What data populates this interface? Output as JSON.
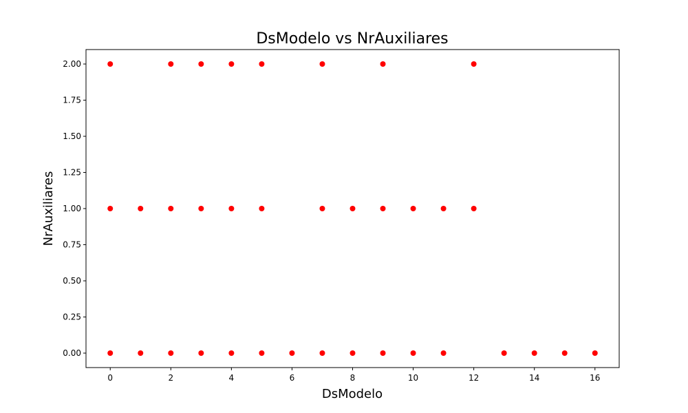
{
  "chart_data": {
    "type": "scatter",
    "title": "DsModelo vs NrAuxiliares",
    "xlabel": "DsModelo",
    "ylabel": "NrAuxiliares",
    "xlim": [
      -0.8,
      16.8
    ],
    "ylim": [
      -0.1,
      2.1
    ],
    "xticks": [
      0,
      2,
      4,
      6,
      8,
      10,
      12,
      14,
      16
    ],
    "yticks": [
      0.0,
      0.25,
      0.5,
      0.75,
      1.0,
      1.25,
      1.5,
      1.75,
      2.0
    ],
    "xtick_labels": [
      "0",
      "2",
      "4",
      "6",
      "8",
      "10",
      "12",
      "14",
      "16"
    ],
    "ytick_labels": [
      "0.00",
      "0.25",
      "0.50",
      "0.75",
      "1.00",
      "1.25",
      "1.50",
      "1.75",
      "2.00"
    ],
    "grid": false,
    "marker_color": "#ff0000",
    "points": [
      {
        "x": 0,
        "y": 2
      },
      {
        "x": 2,
        "y": 2
      },
      {
        "x": 3,
        "y": 2
      },
      {
        "x": 4,
        "y": 2
      },
      {
        "x": 5,
        "y": 2
      },
      {
        "x": 7,
        "y": 2
      },
      {
        "x": 9,
        "y": 2
      },
      {
        "x": 12,
        "y": 2
      },
      {
        "x": 0,
        "y": 1
      },
      {
        "x": 1,
        "y": 1
      },
      {
        "x": 2,
        "y": 1
      },
      {
        "x": 3,
        "y": 1
      },
      {
        "x": 4,
        "y": 1
      },
      {
        "x": 5,
        "y": 1
      },
      {
        "x": 7,
        "y": 1
      },
      {
        "x": 8,
        "y": 1
      },
      {
        "x": 9,
        "y": 1
      },
      {
        "x": 10,
        "y": 1
      },
      {
        "x": 11,
        "y": 1
      },
      {
        "x": 12,
        "y": 1
      },
      {
        "x": 0,
        "y": 0
      },
      {
        "x": 1,
        "y": 0
      },
      {
        "x": 2,
        "y": 0
      },
      {
        "x": 3,
        "y": 0
      },
      {
        "x": 4,
        "y": 0
      },
      {
        "x": 5,
        "y": 0
      },
      {
        "x": 6,
        "y": 0
      },
      {
        "x": 7,
        "y": 0
      },
      {
        "x": 8,
        "y": 0
      },
      {
        "x": 9,
        "y": 0
      },
      {
        "x": 10,
        "y": 0
      },
      {
        "x": 11,
        "y": 0
      },
      {
        "x": 13,
        "y": 0
      },
      {
        "x": 14,
        "y": 0
      },
      {
        "x": 15,
        "y": 0
      },
      {
        "x": 16,
        "y": 0
      }
    ]
  }
}
